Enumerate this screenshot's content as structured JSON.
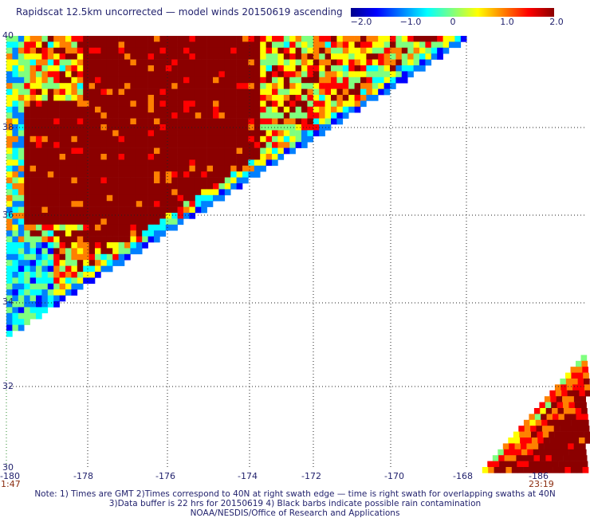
{
  "title": "Rapidscat 12.5km uncorrected — model winds 20150619 ascending",
  "colorbar": {
    "ticks": [
      "−2.0",
      "−1.0",
      "0",
      "1.0",
      "2.0"
    ],
    "colors": [
      "#00008b",
      "#0000ff",
      "#0080ff",
      "#00ffff",
      "#7fff7f",
      "#ffff00",
      "#ff8000",
      "#ff0000",
      "#8b0000"
    ]
  },
  "x_ticks": [
    "-180",
    "-178",
    "-176",
    "-174",
    "-172",
    "-170",
    "-168",
    "-186"
  ],
  "y_ticks": [
    "40",
    "38",
    "36",
    "34",
    "32",
    "30"
  ],
  "times": {
    "left": "1:47",
    "right": "23:19"
  },
  "notes": {
    "line1": "Note: 1) Times are GMT 2)Times correspond to 40N at right swath edge — time is right swath for overlapping swaths at 40N",
    "line2": "3)Data buffer is 22 hrs for 20150619 4) Black barbs indicate possible rain contamination",
    "line3": "NOAA/NESDIS/Office of Research and Applications"
  },
  "map_data": {
    "type": "difference_map",
    "quantity": "wind speed difference (scatterometer − model)",
    "range": [
      -2.0,
      2.0
    ],
    "lon_range": [
      -180,
      -168
    ],
    "lat_range": [
      30,
      40
    ],
    "swaths": [
      {
        "region": "northwest",
        "time": "1:47",
        "dominant": "dark red (+2.0)",
        "edge": "blue/cyan toward SW edge"
      },
      {
        "region": "southeast",
        "time": "23:19",
        "dominant": "dark red (+2.0)",
        "edge": "yellow/green toward SW edge"
      }
    ]
  }
}
